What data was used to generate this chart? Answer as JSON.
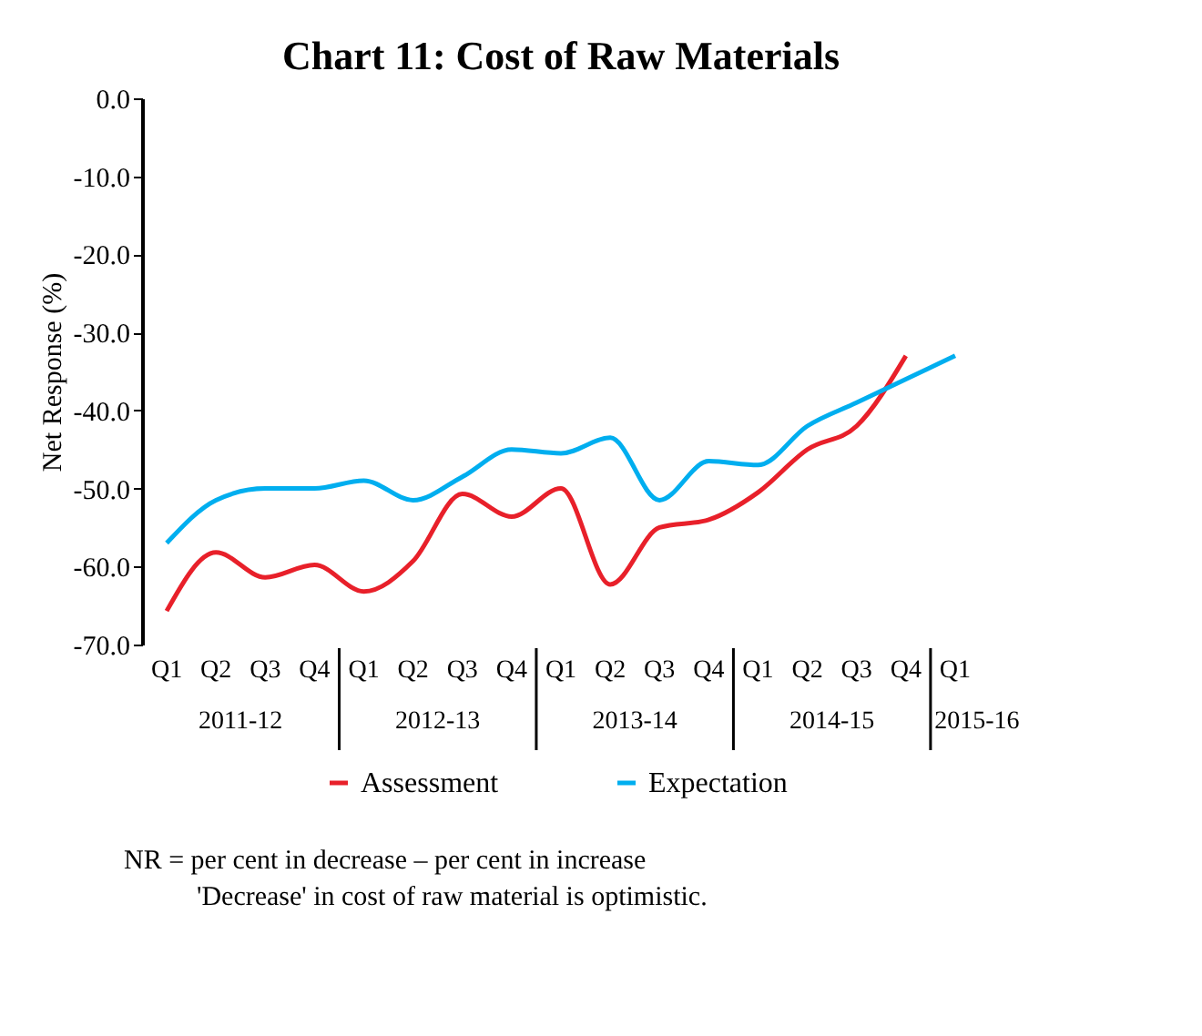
{
  "chart_data": {
    "type": "line",
    "title": "Chart 11: Cost of Raw Materials",
    "ylabel": "Net Response (%)",
    "categories": [
      "Q1",
      "Q2",
      "Q3",
      "Q4",
      "Q1",
      "Q2",
      "Q3",
      "Q4",
      "Q1",
      "Q2",
      "Q3",
      "Q4",
      "Q1",
      "Q2",
      "Q3",
      "Q4",
      "Q1"
    ],
    "series": [
      {
        "name": "Assessment",
        "color": "#e8202a",
        "values": [
          -65.7,
          -58.2,
          -61.4,
          -59.8,
          -63.2,
          -59.3,
          -50.7,
          -53.6,
          -50,
          -62.3,
          -55,
          -54,
          -50.5,
          -45,
          -42,
          -33,
          null
        ]
      },
      {
        "name": "Expectation",
        "color": "#00aeef",
        "values": [
          -57,
          -51.5,
          -50,
          -50,
          -49,
          -51.5,
          -48.5,
          -45,
          -45.5,
          -43.5,
          -51.5,
          -46.5,
          -47,
          -42,
          -39,
          -36,
          -33
        ]
      }
    ],
    "ylim": [
      -70,
      0
    ],
    "yticks": [
      {
        "value": 0,
        "label": "0.0"
      },
      {
        "value": -10,
        "label": "-10.0"
      },
      {
        "value": -20,
        "label": "-20.0"
      },
      {
        "value": -30,
        "label": "-30.0"
      },
      {
        "value": -40,
        "label": "-40.0"
      },
      {
        "value": -50,
        "label": "-50.0"
      },
      {
        "value": -60,
        "label": "-60.0"
      },
      {
        "value": -70,
        "label": "-70.0"
      }
    ],
    "grid": false,
    "legend": "bottom",
    "marker": "none",
    "line_style": "solid",
    "annotations": [
      "2011-12",
      "2012-13",
      "2013-14",
      "2014-15",
      "2015-16",
      "NR = per cent in decrease – per cent in increase",
      "'Decrease' in cost of raw material is optimistic."
    ]
  }
}
